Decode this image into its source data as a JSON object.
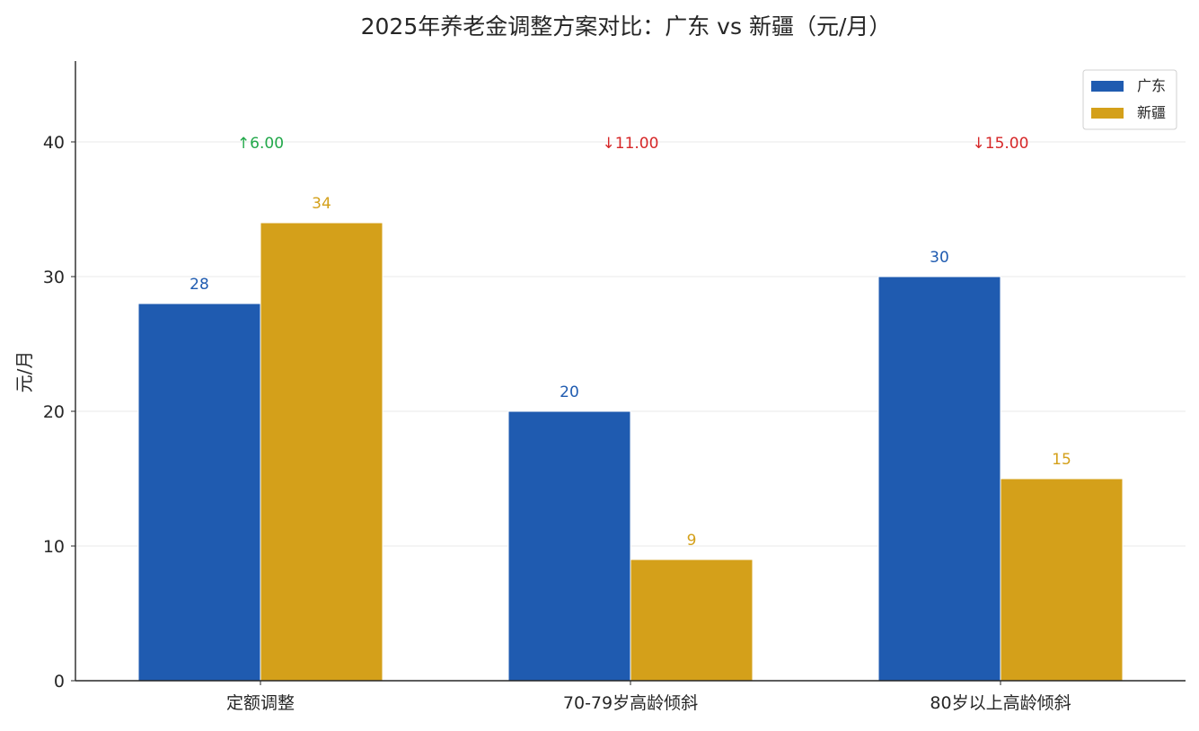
{
  "chart_data": {
    "type": "bar",
    "title": "2025年养老金调整方案对比：广东 vs 新疆（元/月）",
    "xlabel": "",
    "ylabel": "元/月",
    "categories": [
      "定额调整",
      "70-79岁高龄倾斜",
      "80岁以上高龄倾斜"
    ],
    "series": [
      {
        "name": "广东",
        "values": [
          28,
          20,
          30
        ],
        "color": "#1f5bb0"
      },
      {
        "name": "新疆",
        "values": [
          34,
          9,
          15
        ],
        "color": "#d4a01a"
      }
    ],
    "ylim": [
      0,
      46
    ],
    "yticks": [
      0,
      10,
      20,
      30,
      40
    ],
    "grid": true,
    "legend_position": "top-right",
    "annotations": [
      {
        "text": "↑6.00",
        "color": "#22a84a",
        "y": 40
      },
      {
        "text": "↓11.00",
        "color": "#d62728",
        "y": 40
      },
      {
        "text": "↓15.00",
        "color": "#d62728",
        "y": 40
      }
    ]
  }
}
